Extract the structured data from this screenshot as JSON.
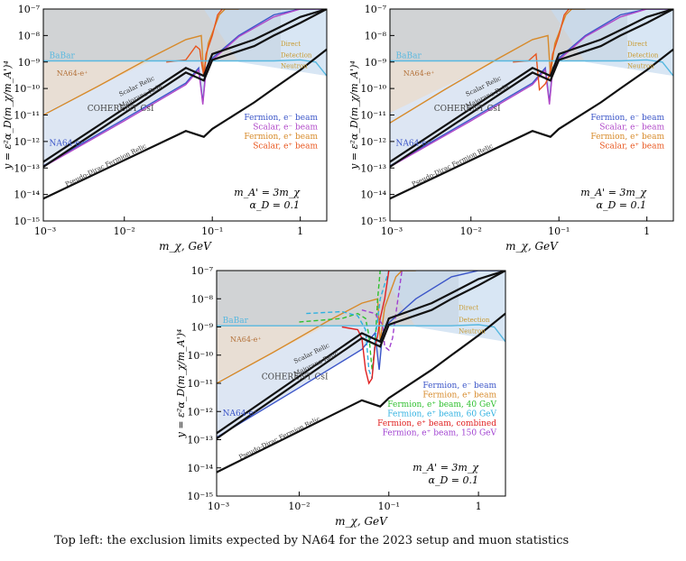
{
  "caption": "Top left: the exclusion limits expected by NA64 for the 2023 setup and muon statistics",
  "colors": {
    "fermion_eminus": "#3b55c8",
    "scalar_eminus": "#b048c8",
    "fermion_eplus": "#d78a2a",
    "scalar_eplus": "#e8541c",
    "fermion_eplus_40": "#30c030",
    "fermion_eplus_60": "#2fb0e0",
    "fermion_eplus_combined": "#e02020",
    "fermion_eplus_150": "#a040d0",
    "babar": "#57b8e0",
    "relic": "#111111"
  },
  "chart_data": [
    {
      "type": "line",
      "xscale": "log",
      "yscale": "log",
      "xlim": [
        0.0012,
        2.0
      ],
      "ylim": [
        1e-15,
        1e-07
      ],
      "xlabel": "m_χ, GeV",
      "ylabel": "y = ε²α_D(m_χ/m_A')⁴",
      "xticks": [
        "10⁻³",
        "10⁻²",
        "10⁻¹",
        "1"
      ],
      "yticks": [
        "10⁻¹⁵",
        "10⁻¹⁴",
        "10⁻¹³",
        "10⁻¹²",
        "10⁻¹¹",
        "10⁻¹⁰",
        "10⁻⁹",
        "10⁻⁸",
        "10⁻⁷"
      ],
      "annotation_lines": [
        "m_A' = 3m_χ",
        "α_D = 0.1"
      ],
      "region_labels": [
        "BaBar",
        "NA64-e⁺",
        "COHERENT CsI",
        "NA64-e⁻",
        "Direct",
        "Detection",
        "Neutron",
        "Scalar Relic",
        "Majorana Relic",
        "Pseudo-Dirac Fermion Relic"
      ],
      "legend": [
        "Fermion, e⁻ beam",
        "Scalar, e⁻ beam",
        "Fermion, e⁺ beam",
        "Scalar, e⁺ beam"
      ],
      "series": [
        {
          "name": "Fermion, e⁻ beam",
          "color": "#3b55c8",
          "x": [
            0.0012,
            0.01,
            0.05,
            0.07,
            0.078,
            0.085,
            0.1,
            0.2,
            0.5,
            1,
            2
          ],
          "y": [
            1.2e-13,
            7e-12,
            1.6e-10,
            6e-10,
            3e-11,
            6e-10,
            1.4e-09,
            1e-08,
            6e-08,
            1e-07,
            1e-07
          ]
        },
        {
          "name": "Scalar, e⁻ beam",
          "color": "#b048c8",
          "x": [
            0.0012,
            0.01,
            0.05,
            0.07,
            0.078,
            0.085,
            0.1,
            0.2,
            0.5,
            1,
            2
          ],
          "y": [
            1.1e-13,
            6e-12,
            1.4e-10,
            5e-10,
            2.5e-11,
            5e-10,
            1.2e-09,
            9e-09,
            5e-08,
            1e-07,
            1e-07
          ]
        },
        {
          "name": "Fermion, e⁺ beam",
          "color": "#d78a2a",
          "x": [
            0.0012,
            0.005,
            0.02,
            0.05,
            0.075,
            0.08,
            0.09,
            0.12,
            0.14,
            0.2
          ],
          "y": [
            1e-11,
            1.2e-10,
            1.5e-09,
            7e-09,
            1e-08,
            3e-10,
            5e-09,
            6e-08,
            1e-07,
            1e-07
          ]
        },
        {
          "name": "Scalar, e⁺ beam",
          "color": "#e8541c",
          "x": [
            0.03,
            0.05,
            0.065,
            0.072,
            0.076,
            0.08,
            0.085,
            0.1,
            0.115,
            0.13
          ],
          "y": [
            1e-09,
            1.2e-09,
            4e-09,
            3e-09,
            8e-10,
            3e-10,
            2e-09,
            1e-08,
            6e-08,
            1e-07
          ]
        },
        {
          "name": "BaBar",
          "color": "#57b8e0",
          "x": [
            0.0012,
            0.1,
            0.5,
            1,
            1.5,
            2
          ],
          "y": [
            1.1e-09,
            1.1e-09,
            1.1e-09,
            1.2e-09,
            1e-09,
            3e-10
          ]
        },
        {
          "name": "Scalar Relic",
          "color": "#111111",
          "x": [
            0.0012,
            0.05,
            0.08,
            0.1,
            0.3,
            0.5,
            1,
            2
          ],
          "y": [
            1.1e-13,
            4e-10,
            2e-10,
            1.2e-09,
            4e-09,
            1e-08,
            3e-08,
            1e-07
          ]
        },
        {
          "name": "Majorana Relic",
          "color": "#111111",
          "x": [
            0.0012,
            0.05,
            0.08,
            0.1,
            0.3,
            0.5,
            1,
            2
          ],
          "y": [
            1.7e-13,
            6e-10,
            3e-10,
            2e-09,
            7e-09,
            1.6e-08,
            5e-08,
            1e-07
          ]
        },
        {
          "name": "Pseudo-Dirac Fermion Relic",
          "color": "#111111",
          "x": [
            0.0012,
            0.05,
            0.08,
            0.1,
            0.3,
            0.5,
            1,
            2
          ],
          "y": [
            7e-15,
            2.5e-12,
            1.5e-12,
            3e-12,
            3e-11,
            1e-10,
            5e-10,
            3e-09
          ]
        }
      ]
    },
    {
      "type": "line",
      "xscale": "log",
      "yscale": "log",
      "xlim": [
        0.0012,
        2.0
      ],
      "ylim": [
        1e-15,
        1e-07
      ],
      "xlabel": "m_χ, GeV",
      "ylabel": "y = ε²α_D(m_χ/m_A')⁴",
      "xticks": [
        "10⁻³",
        "10⁻²",
        "10⁻¹",
        "1"
      ],
      "yticks": [
        "10⁻¹⁵",
        "10⁻¹⁴",
        "10⁻¹³",
        "10⁻¹²",
        "10⁻¹¹",
        "10⁻¹⁰",
        "10⁻⁹",
        "10⁻⁸",
        "10⁻⁷"
      ],
      "annotation_lines": [
        "m_A' = 3m_χ",
        "α_D = 0.1"
      ],
      "region_labels": [
        "BaBar",
        "NA64-e⁺",
        "COHERENT CsI",
        "NA64-e⁻",
        "Direct",
        "Detection",
        "Neutron",
        "Scalar Relic",
        "Majorana Relic",
        "Pseudo-Dirac Fermion Relic"
      ],
      "legend": [
        "Fermion, e⁻ beam",
        "Scalar, e⁻ beam",
        "Fermion, e⁺ beam",
        "Scalar, e⁺ beam"
      ],
      "series": [
        {
          "name": "Fermion, e⁻ beam",
          "color": "#3b55c8",
          "x": [
            0.0012,
            0.01,
            0.05,
            0.07,
            0.078,
            0.085,
            0.1,
            0.2,
            0.5,
            1,
            2
          ],
          "y": [
            1.2e-13,
            7e-12,
            1.6e-10,
            6e-10,
            3e-11,
            6e-10,
            1.4e-09,
            1e-08,
            6e-08,
            1e-07,
            1e-07
          ]
        },
        {
          "name": "Scalar, e⁻ beam",
          "color": "#b048c8",
          "x": [
            0.0012,
            0.01,
            0.05,
            0.07,
            0.078,
            0.085,
            0.1,
            0.2,
            0.5,
            1,
            2
          ],
          "y": [
            1.1e-13,
            6e-12,
            1.4e-10,
            5e-10,
            2.5e-11,
            5e-10,
            1.2e-09,
            9e-09,
            5e-08,
            1e-07,
            1e-07
          ]
        },
        {
          "name": "Fermion, e⁺ beam",
          "color": "#d78a2a",
          "x": [
            0.0012,
            0.005,
            0.02,
            0.05,
            0.075,
            0.08,
            0.09,
            0.12,
            0.14,
            0.2
          ],
          "y": [
            5e-12,
            9e-11,
            1.3e-09,
            7e-09,
            1e-08,
            3e-10,
            5e-09,
            6e-08,
            1e-07,
            1e-07
          ]
        },
        {
          "name": "Scalar, e⁺ beam",
          "color": "#e8541c",
          "x": [
            0.03,
            0.045,
            0.055,
            0.06,
            0.07,
            0.078,
            0.085,
            0.1,
            0.115,
            0.13
          ],
          "y": [
            1e-09,
            1.1e-09,
            2e-09,
            9e-11,
            1.5e-10,
            3e-10,
            2e-09,
            1e-08,
            6e-08,
            1e-07
          ]
        },
        {
          "name": "BaBar",
          "color": "#57b8e0",
          "x": [
            0.0012,
            0.1,
            0.5,
            1,
            1.5,
            2
          ],
          "y": [
            1.1e-09,
            1.1e-09,
            1.1e-09,
            1.2e-09,
            1e-09,
            3e-10
          ]
        },
        {
          "name": "Scalar Relic",
          "color": "#111111",
          "x": [
            0.0012,
            0.05,
            0.08,
            0.1,
            0.3,
            0.5,
            1,
            2
          ],
          "y": [
            1.1e-13,
            4e-10,
            2e-10,
            1.2e-09,
            4e-09,
            1e-08,
            3e-08,
            1e-07
          ]
        },
        {
          "name": "Majorana Relic",
          "color": "#111111",
          "x": [
            0.0012,
            0.05,
            0.08,
            0.1,
            0.3,
            0.5,
            1,
            2
          ],
          "y": [
            1.7e-13,
            6e-10,
            3e-10,
            2e-09,
            7e-09,
            1.6e-08,
            5e-08,
            1e-07
          ]
        },
        {
          "name": "Pseudo-Dirac Fermion Relic",
          "color": "#111111",
          "x": [
            0.0012,
            0.05,
            0.08,
            0.1,
            0.3,
            0.5,
            1,
            2
          ],
          "y": [
            7e-15,
            2.5e-12,
            1.5e-12,
            3e-12,
            3e-11,
            1e-10,
            5e-10,
            3e-09
          ]
        }
      ]
    },
    {
      "type": "line",
      "xscale": "log",
      "yscale": "log",
      "xlim": [
        0.0012,
        2.0
      ],
      "ylim": [
        1e-15,
        1e-07
      ],
      "xlabel": "m_χ, GeV",
      "ylabel": "y = ε²α_D(m_χ/m_A')⁴",
      "xticks": [
        "10⁻³",
        "10⁻²",
        "10⁻¹",
        "1"
      ],
      "yticks": [
        "10⁻¹⁵",
        "10⁻¹⁴",
        "10⁻¹³",
        "10⁻¹²",
        "10⁻¹¹",
        "10⁻¹⁰",
        "10⁻⁹",
        "10⁻⁸",
        "10⁻⁷"
      ],
      "annotation_lines": [
        "m_A' = 3m_χ",
        "α_D = 0.1"
      ],
      "region_labels": [
        "BaBar",
        "NA64-e⁺",
        "COHERENT CsI",
        "NA64-e⁻",
        "Direct",
        "Detection",
        "Neutron",
        "Scalar Relic",
        "Majorana Relic",
        "Pseudo-Dirac Fermion Relic"
      ],
      "legend": [
        "Fermion, e⁻ beam",
        "Fermion, e⁺ beam",
        "Fermion, e⁺ beam, 40 GeV",
        "Fermion, e⁺ beam, 60 GeV",
        "Fermion, e⁺ beam, combined",
        "Fermion, e⁺ beam, 150 GeV"
      ],
      "series": [
        {
          "name": "Fermion, e⁻ beam",
          "color": "#3b55c8",
          "x": [
            0.0012,
            0.01,
            0.05,
            0.07,
            0.078,
            0.085,
            0.1,
            0.2,
            0.5,
            1,
            2
          ],
          "y": [
            1.2e-13,
            7e-12,
            1.6e-10,
            6e-10,
            3e-11,
            6e-10,
            1.4e-09,
            1e-08,
            6e-08,
            1e-07,
            1e-07
          ]
        },
        {
          "name": "Fermion, e⁺ beam",
          "color": "#d78a2a",
          "x": [
            0.0012,
            0.005,
            0.02,
            0.05,
            0.075,
            0.08,
            0.09,
            0.12,
            0.14,
            0.2
          ],
          "y": [
            1e-11,
            1.2e-10,
            1.5e-09,
            7e-09,
            1e-08,
            3e-10,
            5e-09,
            6e-08,
            1e-07,
            1e-07
          ]
        },
        {
          "name": "Fermion, e⁺ beam, 40 GeV",
          "color": "#30c030",
          "dash": true,
          "x": [
            0.01,
            0.03,
            0.045,
            0.055,
            0.06,
            0.065,
            0.07,
            0.075,
            0.08
          ],
          "y": [
            1.5e-09,
            2e-09,
            3e-09,
            2e-09,
            5e-10,
            3e-11,
            2e-10,
            1e-08,
            1e-07
          ]
        },
        {
          "name": "Fermion, e⁺ beam, 60 GeV",
          "color": "#2fb0e0",
          "dash": true,
          "x": [
            0.012,
            0.03,
            0.045,
            0.055,
            0.06,
            0.065,
            0.07,
            0.08,
            0.1
          ],
          "y": [
            3e-09,
            3.5e-09,
            2.5e-09,
            8e-10,
            3e-11,
            1.5e-11,
            3e-10,
            1e-08,
            1e-07
          ]
        },
        {
          "name": "Fermion, e⁺ beam, combined",
          "color": "#e02020",
          "x": [
            0.03,
            0.045,
            0.05,
            0.055,
            0.06,
            0.065,
            0.07,
            0.075,
            0.08,
            0.09,
            0.1
          ],
          "y": [
            1e-09,
            8e-10,
            4e-10,
            3e-11,
            1e-11,
            1.5e-11,
            2e-10,
            5e-10,
            2e-09,
            1e-08,
            1e-07
          ]
        },
        {
          "name": "Fermion, e⁺ beam, 150 GeV",
          "color": "#a040d0",
          "dash": true,
          "x": [
            0.05,
            0.07,
            0.085,
            0.09,
            0.1,
            0.11,
            0.12,
            0.14
          ],
          "y": [
            4e-09,
            3e-09,
            1.2e-09,
            2e-10,
            1.5e-10,
            4e-10,
            3e-09,
            1e-07
          ]
        },
        {
          "name": "BaBar",
          "color": "#57b8e0",
          "x": [
            0.0012,
            0.1,
            0.5,
            1,
            1.5,
            2
          ],
          "y": [
            1.1e-09,
            1.1e-09,
            1.1e-09,
            1.2e-09,
            1e-09,
            3e-10
          ]
        },
        {
          "name": "Scalar Relic",
          "color": "#111111",
          "x": [
            0.0012,
            0.05,
            0.08,
            0.1,
            0.3,
            0.5,
            1,
            2
          ],
          "y": [
            1.1e-13,
            4e-10,
            2e-10,
            1.2e-09,
            4e-09,
            1e-08,
            3e-08,
            1e-07
          ]
        },
        {
          "name": "Majorana Relic",
          "color": "#111111",
          "x": [
            0.0012,
            0.05,
            0.08,
            0.1,
            0.3,
            0.5,
            1,
            2
          ],
          "y": [
            1.7e-13,
            6e-10,
            3e-10,
            2e-09,
            7e-09,
            1.6e-08,
            5e-08,
            1e-07
          ]
        },
        {
          "name": "Pseudo-Dirac Fermion Relic",
          "color": "#111111",
          "x": [
            0.0012,
            0.05,
            0.08,
            0.1,
            0.3,
            0.5,
            1,
            2
          ],
          "y": [
            7e-15,
            2.5e-12,
            1.5e-12,
            3e-12,
            3e-11,
            1e-10,
            5e-10,
            3e-09
          ]
        }
      ]
    }
  ]
}
